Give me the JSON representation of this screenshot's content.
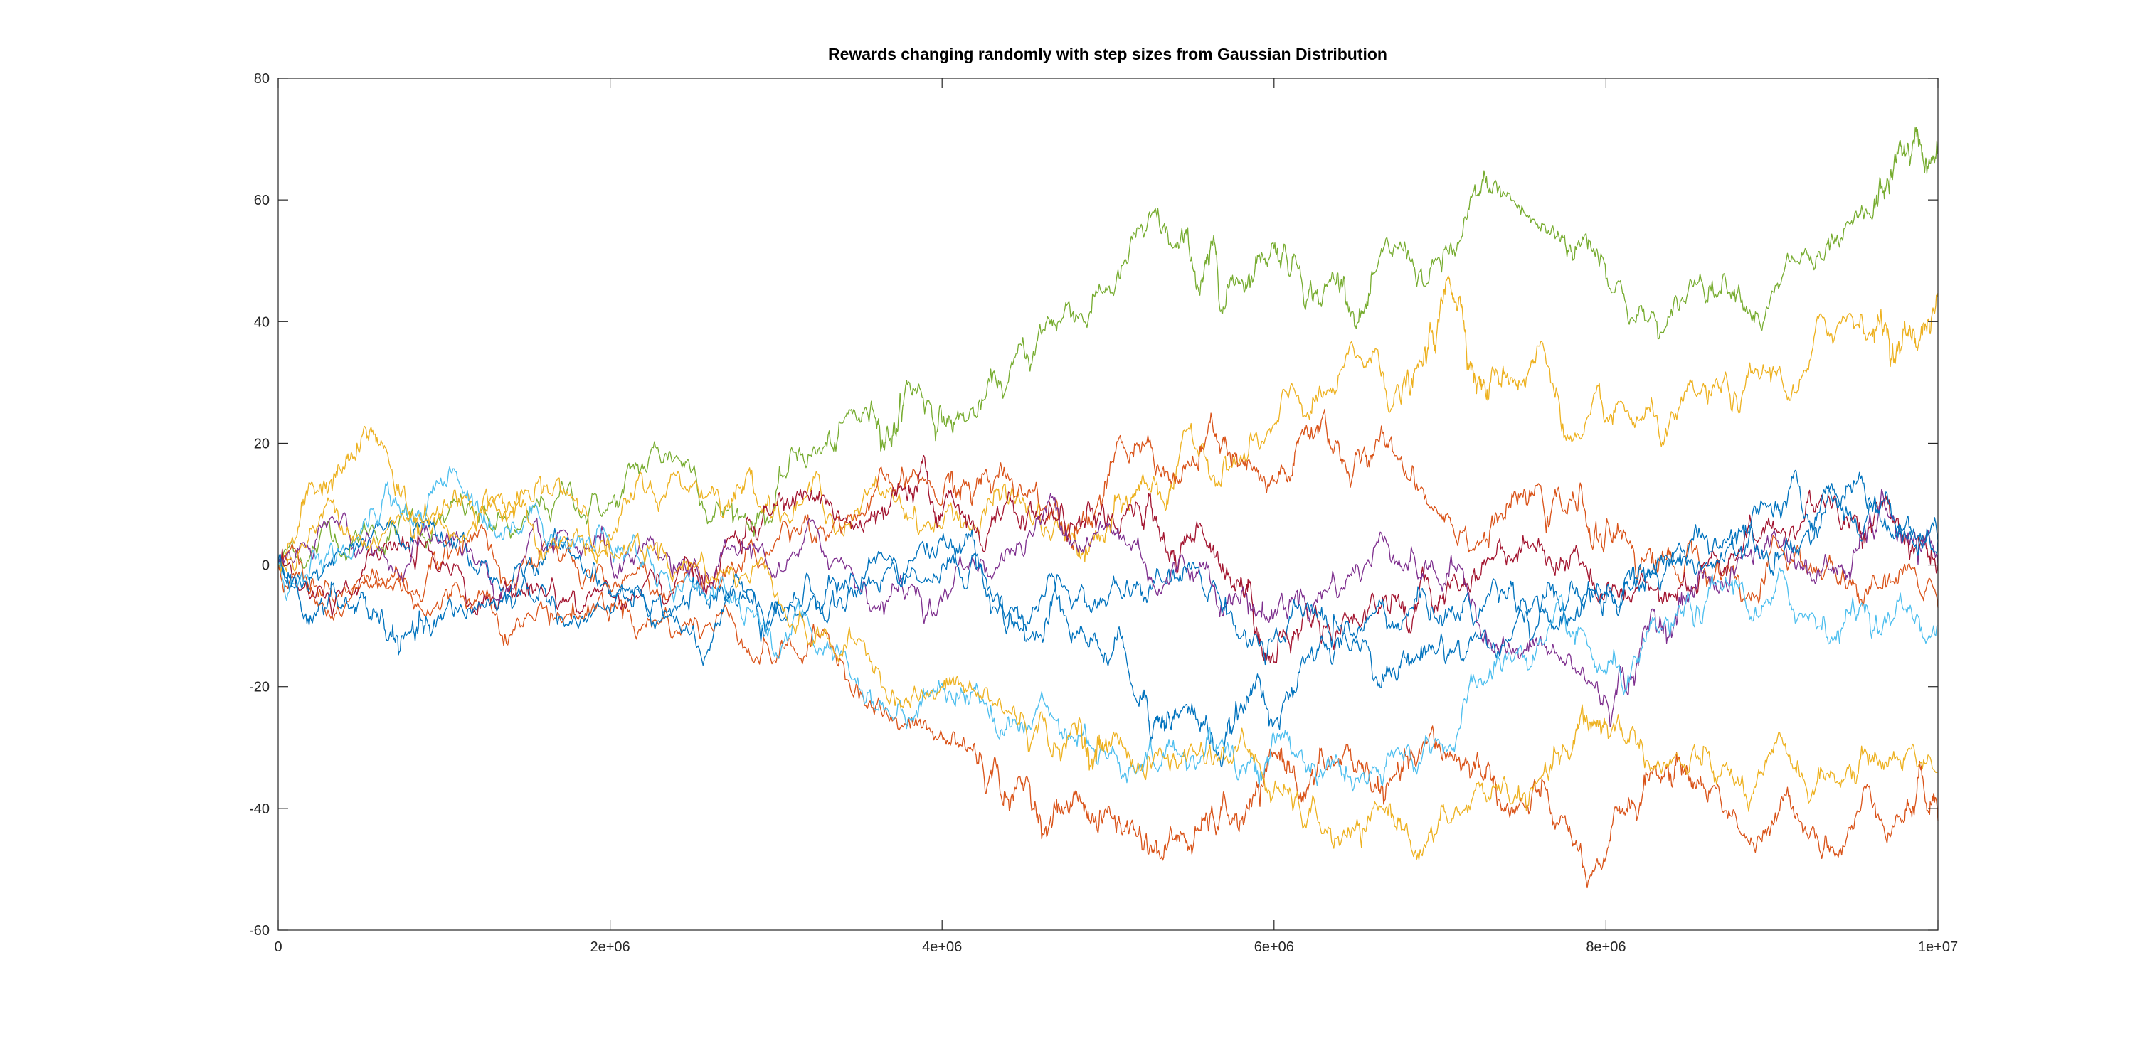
{
  "chart_data": {
    "type": "line",
    "title": "Rewards changing randomly with step sizes from Gaussian Distribution",
    "xlabel": "",
    "ylabel": "",
    "xlim": [
      0,
      10000000
    ],
    "ylim": [
      -60,
      80
    ],
    "x_ticks": [
      0,
      2000000,
      4000000,
      6000000,
      8000000,
      10000000
    ],
    "x_tick_labels": [
      "0",
      "2e+06",
      "4e+06",
      "6e+06",
      "8e+06",
      "1e+07"
    ],
    "y_ticks": [
      -60,
      -40,
      -20,
      0,
      20,
      40,
      60,
      80
    ],
    "y_tick_labels": [
      "-60",
      "-40",
      "-20",
      "0",
      "20",
      "40",
      "60",
      "80"
    ],
    "grid": false,
    "legend": "none",
    "colors": {
      "axis": "#262626",
      "tick": "#262626",
      "background": "#ffffff"
    },
    "series": [
      {
        "color": "#77AC30",
        "x": [
          0,
          500000,
          1000000,
          1500000,
          2000000,
          2400000,
          2800000,
          3200000,
          3600000,
          3800000,
          4100000,
          4500000,
          4800000,
          5200000,
          5500000,
          5700000,
          6000000,
          6300000,
          6600000,
          7000000,
          7300000,
          7700000,
          8000000,
          8400000,
          8800000,
          9200000,
          9600000,
          9800000,
          10000000
        ],
        "y": [
          0,
          5,
          7,
          9,
          10,
          18,
          8,
          18,
          24,
          30,
          24,
          34,
          40,
          56,
          50,
          42,
          52,
          45,
          48,
          50,
          62,
          54,
          47,
          41,
          46,
          52,
          57,
          68,
          68
        ]
      },
      {
        "color": "#EDB120",
        "x": [
          0,
          300000,
          600000,
          900000,
          1300000,
          1700000,
          2100000,
          2600000,
          3000000,
          3500000,
          4000000,
          4400000,
          4800000,
          5100000,
          5400000,
          5800000,
          6200000,
          6600000,
          6900000,
          7100000,
          7300000,
          7600000,
          8000000,
          8400000,
          8800000,
          9200000,
          9600000,
          9800000,
          10000000
        ],
        "y": [
          0,
          12,
          20,
          8,
          10,
          12,
          10,
          12,
          10,
          8,
          6,
          10,
          5,
          10,
          15,
          18,
          25,
          35,
          33,
          42,
          30,
          36,
          24,
          25,
          25,
          32,
          38,
          40,
          44
        ]
      },
      {
        "color": "#D95319",
        "x": [
          0,
          500000,
          1000000,
          1500000,
          2000000,
          2500000,
          3000000,
          3500000,
          4000000,
          4300000,
          4600000,
          4900000,
          5200000,
          5500000,
          5800000,
          6100000,
          6400000,
          6700000,
          7000000,
          7300000,
          7600000,
          8000000,
          8300000,
          8600000,
          9000000,
          9400000,
          9800000,
          10000000
        ],
        "y": [
          0,
          -3,
          -5,
          -8,
          -8,
          -10,
          -16,
          -22,
          -28,
          -35,
          -45,
          -42,
          -45,
          -46,
          -42,
          -34,
          -32,
          -35,
          -30,
          -33,
          -38,
          -48,
          -33,
          -37,
          -42,
          -48,
          -42,
          -42
        ]
      },
      {
        "color": "#D95319",
        "x": [
          0,
          500000,
          1000000,
          1500000,
          2000000,
          2500000,
          3000000,
          3500000,
          4000000,
          4300000,
          4700000,
          5000000,
          5400000,
          5700000,
          6000000,
          6300000,
          6600000,
          7000000,
          7400000,
          7800000,
          8100000,
          8400000,
          8800000,
          9200000,
          9600000,
          10000000
        ],
        "y": [
          0,
          -2,
          2,
          0,
          -4,
          0,
          4,
          8,
          10,
          12,
          8,
          15,
          14,
          20,
          14,
          25,
          18,
          8,
          10,
          12,
          5,
          0,
          -2,
          0,
          -3,
          -7
        ]
      },
      {
        "color": "#A2142F",
        "x": [
          0,
          500000,
          1000000,
          1500000,
          2000000,
          2500000,
          2900000,
          3300000,
          3700000,
          4000000,
          4400000,
          4800000,
          5200000,
          5500000,
          5800000,
          6000000,
          6300000,
          6700000,
          7000000,
          7400000,
          7800000,
          8200000,
          8600000,
          9000000,
          9400000,
          9700000,
          10000000
        ],
        "y": [
          0,
          -2,
          0,
          -3,
          -5,
          -2,
          6,
          10,
          12,
          8,
          12,
          6,
          8,
          4,
          -2,
          -16,
          -10,
          -8,
          -5,
          0,
          2,
          -3,
          0,
          6,
          8,
          10,
          0
        ]
      },
      {
        "color": "#7E2F8E",
        "x": [
          0,
          500000,
          1000000,
          1500000,
          2000000,
          2500000,
          3000000,
          3500000,
          4000000,
          4500000,
          4900000,
          5300000,
          5700000,
          6000000,
          6400000,
          6800000,
          7200000,
          7600000,
          8000000,
          8300000,
          8600000,
          9000000,
          9400000,
          9700000,
          10000000
        ],
        "y": [
          0,
          2,
          4,
          3,
          2,
          0,
          -2,
          -4,
          -6,
          2,
          4,
          -5,
          -7,
          -8,
          -4,
          0,
          -6,
          -12,
          -22,
          -10,
          -2,
          5,
          0,
          8,
          0
        ]
      },
      {
        "color": "#0072BD",
        "x": [
          0,
          400000,
          700000,
          1000000,
          1500000,
          2000000,
          2600000,
          3000000,
          3500000,
          4000000,
          4400000,
          4800000,
          5200000,
          5400000,
          5700000,
          6000000,
          6400000,
          6800000,
          7200000,
          7600000,
          8000000,
          8400000,
          8800000,
          9200000,
          9600000,
          10000000
        ],
        "y": [
          0,
          -6,
          -12,
          -8,
          -4,
          -8,
          -14,
          -8,
          -4,
          0,
          -10,
          -12,
          -22,
          -24,
          -30,
          -26,
          -12,
          -8,
          -10,
          -8,
          -5,
          0,
          2,
          5,
          10,
          4
        ]
      },
      {
        "color": "#0072BD",
        "x": [
          0,
          500000,
          1000000,
          1500000,
          2000000,
          2500000,
          3000000,
          3500000,
          4000000,
          4400000,
          4800000,
          5200000,
          5600000,
          6000000,
          6400000,
          6800000,
          7200000,
          7600000,
          8000000,
          8400000,
          8800000,
          9200000,
          9600000,
          10000000
        ],
        "y": [
          0,
          4,
          3,
          0,
          -4,
          -2,
          -6,
          -4,
          4,
          -8,
          -6,
          -5,
          -6,
          -12,
          -10,
          -16,
          -12,
          -8,
          -6,
          2,
          6,
          8,
          10,
          4
        ]
      },
      {
        "color": "#4DBEEE",
        "x": [
          0,
          500000,
          900000,
          1300000,
          1800000,
          2200000,
          2700000,
          3200000,
          3700000,
          4100000,
          4500000,
          4900000,
          5300000,
          5700000,
          6000000,
          6400000,
          6800000,
          7200000,
          7600000,
          8000000,
          8400000,
          8800000,
          9200000,
          9600000,
          10000000
        ],
        "y": [
          0,
          6,
          10,
          6,
          4,
          0,
          -5,
          -10,
          -25,
          -22,
          -26,
          -30,
          -34,
          -30,
          -28,
          -33,
          -30,
          -18,
          -12,
          -18,
          -10,
          -4,
          -8,
          -12,
          -10
        ]
      },
      {
        "color": "#EDB120",
        "x": [
          0,
          500000,
          1000000,
          1500000,
          2000000,
          2500000,
          3000000,
          3500000,
          4000000,
          4400000,
          4800000,
          5000000,
          5400000,
          5800000,
          6200000,
          6600000,
          7000000,
          7400000,
          7800000,
          8000000,
          8400000,
          8800000,
          9200000,
          9600000,
          10000000
        ],
        "y": [
          0,
          4,
          6,
          8,
          2,
          0,
          -5,
          -12,
          -20,
          -24,
          -26,
          -30,
          -32,
          -28,
          -42,
          -40,
          -42,
          -36,
          -30,
          -26,
          -32,
          -36,
          -36,
          -32,
          -34
        ]
      }
    ]
  }
}
